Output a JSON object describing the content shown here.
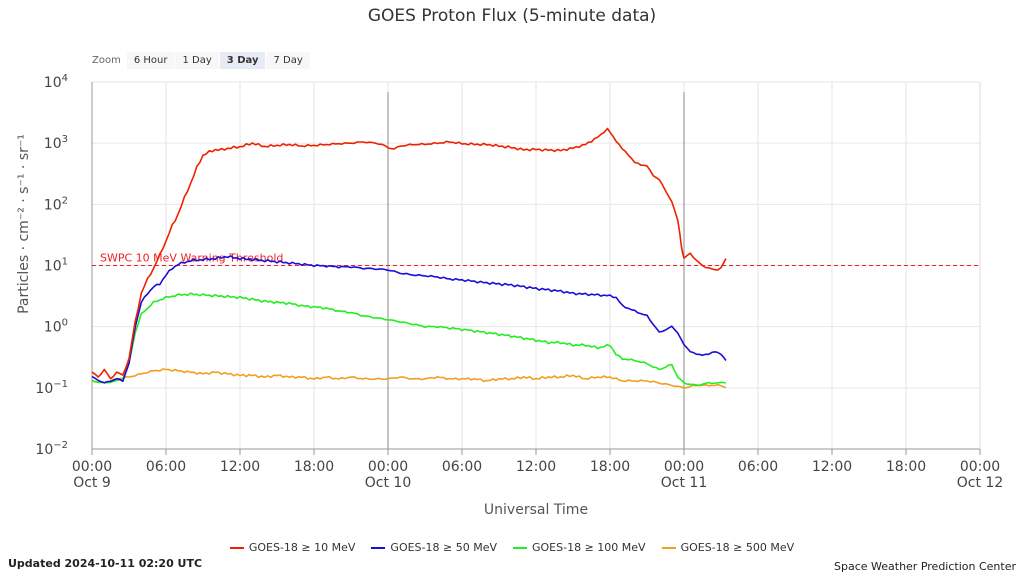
{
  "title": "GOES Proton Flux (5-minute data)",
  "zoom": {
    "label": "Zoom",
    "buttons": [
      "6 Hour",
      "1 Day",
      "3 Day",
      "7 Day"
    ],
    "active": "3 Day"
  },
  "footer": {
    "updated": "Updated 2024-10-11 02:20 UTC",
    "credit": "Space Weather Prediction Center"
  },
  "colors": {
    "s10": "#ee2200",
    "s50": "#1a0ed8",
    "s100": "#22ee22",
    "s500": "#f0a020",
    "threshold": "#ee2222",
    "grid": "#e6e6e6",
    "day_line": "#888888"
  },
  "chart_data": {
    "type": "line",
    "xlabel": "Universal Time",
    "ylabel": "Particles · cm⁻² · s⁻¹ · sr⁻¹",
    "x_unit": "hours since Oct 9 00:00 UTC",
    "xlim": [
      0,
      72
    ],
    "y_scale": "log",
    "y_exp_range": [
      -2,
      4
    ],
    "y_ticks": [
      {
        "base": "10",
        "exp": "4"
      },
      {
        "base": "10",
        "exp": "3"
      },
      {
        "base": "10",
        "exp": "2"
      },
      {
        "base": "10",
        "exp": "1"
      },
      {
        "base": "10",
        "exp": "0"
      },
      {
        "base": "10",
        "exp": "−1"
      },
      {
        "base": "10",
        "exp": "−2"
      }
    ],
    "x_ticks": [
      {
        "h": 0,
        "time": "00:00",
        "date": "Oct 9"
      },
      {
        "h": 6,
        "time": "06:00",
        "date": ""
      },
      {
        "h": 12,
        "time": "12:00",
        "date": ""
      },
      {
        "h": 18,
        "time": "18:00",
        "date": ""
      },
      {
        "h": 24,
        "time": "00:00",
        "date": "Oct 10"
      },
      {
        "h": 30,
        "time": "06:00",
        "date": ""
      },
      {
        "h": 36,
        "time": "12:00",
        "date": ""
      },
      {
        "h": 42,
        "time": "18:00",
        "date": ""
      },
      {
        "h": 48,
        "time": "00:00",
        "date": "Oct 11"
      },
      {
        "h": 54,
        "time": "06:00",
        "date": ""
      },
      {
        "h": 60,
        "time": "12:00",
        "date": ""
      },
      {
        "h": 66,
        "time": "18:00",
        "date": ""
      },
      {
        "h": 72,
        "time": "00:00",
        "date": "Oct 12"
      }
    ],
    "day_lines": [
      24,
      48
    ],
    "threshold": {
      "label": "SWPC 10 MeV Warning Threshold",
      "value": 10
    },
    "legend_placement": "bottom-center",
    "series": [
      {
        "name": "GOES-18 ≥ 10 MeV",
        "color_key": "s10",
        "points": [
          [
            0,
            0.18
          ],
          [
            0.5,
            0.15
          ],
          [
            1,
            0.2
          ],
          [
            1.5,
            0.14
          ],
          [
            2,
            0.18
          ],
          [
            2.5,
            0.16
          ],
          [
            3,
            0.3
          ],
          [
            3.5,
            1.2
          ],
          [
            4,
            3.5
          ],
          [
            4.5,
            6
          ],
          [
            5,
            9
          ],
          [
            5.5,
            15
          ],
          [
            6,
            25
          ],
          [
            6.5,
            45
          ],
          [
            7,
            70
          ],
          [
            7.5,
            130
          ],
          [
            8,
            220
          ],
          [
            8.5,
            400
          ],
          [
            9,
            630
          ],
          [
            9.5,
            720
          ],
          [
            10,
            780
          ],
          [
            10.5,
            780
          ],
          [
            11,
            820
          ],
          [
            11.5,
            850
          ],
          [
            12,
            870
          ],
          [
            13,
            1000
          ],
          [
            14,
            880
          ],
          [
            15,
            920
          ],
          [
            16,
            950
          ],
          [
            17,
            900
          ],
          [
            18,
            920
          ],
          [
            19,
            950
          ],
          [
            20,
            980
          ],
          [
            21,
            1000
          ],
          [
            22,
            1050
          ],
          [
            23,
            1000
          ],
          [
            23.5,
            950
          ],
          [
            24,
            850
          ],
          [
            24.5,
            800
          ],
          [
            25,
            900
          ],
          [
            26,
            950
          ],
          [
            27,
            960
          ],
          [
            28,
            1000
          ],
          [
            29,
            1050
          ],
          [
            30,
            980
          ],
          [
            31,
            960
          ],
          [
            32,
            950
          ],
          [
            33,
            900
          ],
          [
            34,
            850
          ],
          [
            35,
            780
          ],
          [
            36,
            790
          ],
          [
            37,
            770
          ],
          [
            38,
            760
          ],
          [
            39,
            830
          ],
          [
            40,
            950
          ],
          [
            41,
            1250
          ],
          [
            41.8,
            1700
          ],
          [
            42.5,
            1100
          ],
          [
            43,
            800
          ],
          [
            43.5,
            650
          ],
          [
            44,
            480
          ],
          [
            45,
            420
          ],
          [
            45.5,
            300
          ],
          [
            46,
            250
          ],
          [
            46.5,
            170
          ],
          [
            47,
            110
          ],
          [
            47.5,
            55
          ],
          [
            47.8,
            20
          ],
          [
            48,
            13
          ],
          [
            48.5,
            16
          ],
          [
            49,
            12
          ],
          [
            49.5,
            10
          ],
          [
            50,
            9
          ],
          [
            50.5,
            8.5
          ],
          [
            51,
            9
          ],
          [
            51.4,
            13
          ]
        ]
      },
      {
        "name": "GOES-18 ≥ 50 MeV",
        "color_key": "s50",
        "points": [
          [
            0,
            0.15
          ],
          [
            1,
            0.12
          ],
          [
            2,
            0.14
          ],
          [
            2.5,
            0.13
          ],
          [
            3,
            0.25
          ],
          [
            3.5,
            1
          ],
          [
            4,
            2.5
          ],
          [
            4.5,
            3.5
          ],
          [
            5,
            4.5
          ],
          [
            5.5,
            5
          ],
          [
            6,
            7
          ],
          [
            6.5,
            9
          ],
          [
            7,
            10.5
          ],
          [
            8,
            12
          ],
          [
            9,
            12.5
          ],
          [
            10,
            13
          ],
          [
            11,
            14
          ],
          [
            12,
            13
          ],
          [
            13,
            12.5
          ],
          [
            14,
            12
          ],
          [
            15,
            11.5
          ],
          [
            16,
            11
          ],
          [
            17,
            10.5
          ],
          [
            18,
            10
          ],
          [
            19,
            9.8
          ],
          [
            20,
            9.5
          ],
          [
            21,
            9.5
          ],
          [
            22,
            9
          ],
          [
            23,
            8.8
          ],
          [
            24,
            8.5
          ],
          [
            25,
            7.5
          ],
          [
            26,
            7
          ],
          [
            27,
            6.8
          ],
          [
            28,
            6.5
          ],
          [
            29,
            6
          ],
          [
            30,
            5.8
          ],
          [
            31,
            5.5
          ],
          [
            32,
            5.2
          ],
          [
            33,
            5
          ],
          [
            34,
            4.8
          ],
          [
            35,
            4.5
          ],
          [
            36,
            4.2
          ],
          [
            37,
            4
          ],
          [
            38,
            3.8
          ],
          [
            39,
            3.5
          ],
          [
            40,
            3.4
          ],
          [
            41,
            3.3
          ],
          [
            42,
            3.2
          ],
          [
            42.5,
            3
          ],
          [
            43,
            2.2
          ],
          [
            44,
            1.8
          ],
          [
            45,
            1.5
          ],
          [
            45.5,
            1.1
          ],
          [
            46,
            0.8
          ],
          [
            47,
            1
          ],
          [
            47.5,
            0.8
          ],
          [
            48,
            0.5
          ],
          [
            48.5,
            0.4
          ],
          [
            49,
            0.35
          ],
          [
            50,
            0.35
          ],
          [
            50.5,
            0.4
          ],
          [
            51,
            0.35
          ],
          [
            51.4,
            0.28
          ]
        ]
      },
      {
        "name": "GOES-18 ≥ 100 MeV",
        "color_key": "s100",
        "points": [
          [
            0,
            0.13
          ],
          [
            1,
            0.12
          ],
          [
            2,
            0.13
          ],
          [
            2.5,
            0.14
          ],
          [
            3,
            0.25
          ],
          [
            3.5,
            0.8
          ],
          [
            4,
            1.6
          ],
          [
            4.5,
            2
          ],
          [
            5,
            2.5
          ],
          [
            6,
            3
          ],
          [
            7,
            3.3
          ],
          [
            8,
            3.4
          ],
          [
            9,
            3.3
          ],
          [
            10,
            3.2
          ],
          [
            11,
            3.1
          ],
          [
            12,
            3
          ],
          [
            13,
            2.8
          ],
          [
            14,
            2.6
          ],
          [
            15,
            2.5
          ],
          [
            16,
            2.4
          ],
          [
            17,
            2.2
          ],
          [
            18,
            2.1
          ],
          [
            19,
            2
          ],
          [
            20,
            1.8
          ],
          [
            21,
            1.7
          ],
          [
            22,
            1.5
          ],
          [
            23,
            1.4
          ],
          [
            24,
            1.3
          ],
          [
            25,
            1.2
          ],
          [
            26,
            1.1
          ],
          [
            27,
            1
          ],
          [
            28,
            1
          ],
          [
            29,
            0.95
          ],
          [
            30,
            0.9
          ],
          [
            31,
            0.85
          ],
          [
            32,
            0.8
          ],
          [
            33,
            0.75
          ],
          [
            34,
            0.7
          ],
          [
            35,
            0.65
          ],
          [
            36,
            0.6
          ],
          [
            37,
            0.55
          ],
          [
            38,
            0.55
          ],
          [
            39,
            0.5
          ],
          [
            40,
            0.5
          ],
          [
            41,
            0.45
          ],
          [
            42,
            0.5
          ],
          [
            42.5,
            0.35
          ],
          [
            43,
            0.3
          ],
          [
            44,
            0.28
          ],
          [
            45,
            0.25
          ],
          [
            45.5,
            0.22
          ],
          [
            46,
            0.2
          ],
          [
            47,
            0.24
          ],
          [
            47.5,
            0.15
          ],
          [
            48,
            0.12
          ],
          [
            49,
            0.11
          ],
          [
            50,
            0.12
          ],
          [
            51,
            0.12
          ],
          [
            51.4,
            0.12
          ]
        ]
      },
      {
        "name": "GOES-18 ≥ 500 MeV",
        "color_key": "s500",
        "points": [
          [
            0,
            0.13
          ],
          [
            1,
            0.12
          ],
          [
            2,
            0.14
          ],
          [
            3,
            0.15
          ],
          [
            4,
            0.17
          ],
          [
            5,
            0.19
          ],
          [
            6,
            0.2
          ],
          [
            7,
            0.19
          ],
          [
            8,
            0.18
          ],
          [
            9,
            0.17
          ],
          [
            10,
            0.18
          ],
          [
            11,
            0.17
          ],
          [
            12,
            0.16
          ],
          [
            13,
            0.16
          ],
          [
            14,
            0.15
          ],
          [
            15,
            0.16
          ],
          [
            16,
            0.15
          ],
          [
            17,
            0.15
          ],
          [
            18,
            0.14
          ],
          [
            19,
            0.15
          ],
          [
            20,
            0.14
          ],
          [
            21,
            0.15
          ],
          [
            22,
            0.14
          ],
          [
            23,
            0.14
          ],
          [
            24,
            0.14
          ],
          [
            25,
            0.15
          ],
          [
            26,
            0.14
          ],
          [
            27,
            0.14
          ],
          [
            28,
            0.15
          ],
          [
            29,
            0.14
          ],
          [
            30,
            0.14
          ],
          [
            31,
            0.14
          ],
          [
            32,
            0.13
          ],
          [
            33,
            0.14
          ],
          [
            34,
            0.14
          ],
          [
            35,
            0.15
          ],
          [
            36,
            0.14
          ],
          [
            37,
            0.15
          ],
          [
            38,
            0.15
          ],
          [
            39,
            0.16
          ],
          [
            40,
            0.14
          ],
          [
            41,
            0.15
          ],
          [
            42,
            0.15
          ],
          [
            43,
            0.13
          ],
          [
            44,
            0.13
          ],
          [
            45,
            0.13
          ],
          [
            46,
            0.12
          ],
          [
            47,
            0.11
          ],
          [
            48,
            0.1
          ],
          [
            49,
            0.11
          ],
          [
            50,
            0.11
          ],
          [
            51,
            0.11
          ],
          [
            51.4,
            0.1
          ]
        ]
      }
    ]
  }
}
